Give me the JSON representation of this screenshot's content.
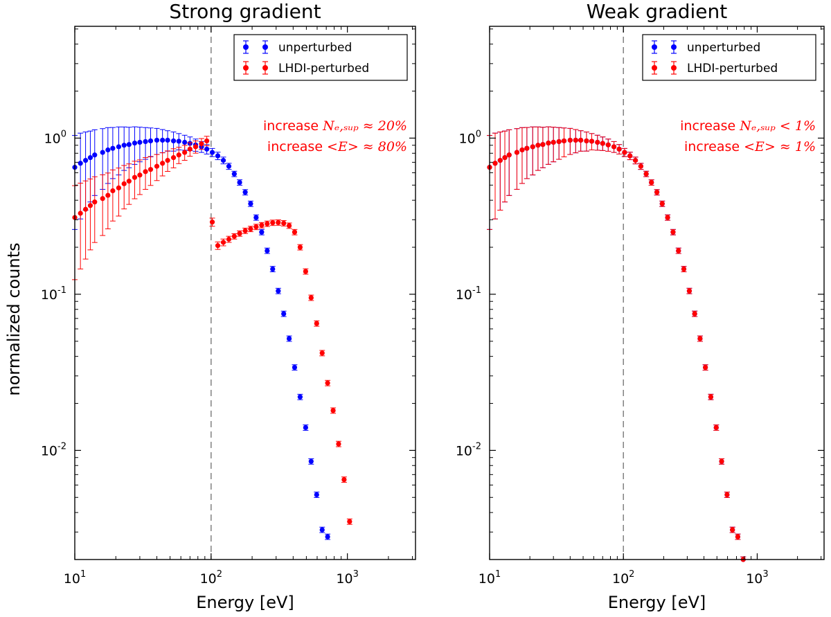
{
  "figure": {
    "ylabel": "normalized counts",
    "xlabel": "Energy [eV]",
    "x_tick_base": "10",
    "x_tick_exponents": [
      "1",
      "2",
      "3"
    ],
    "y_tick_base": "10",
    "y_tick_exponents": [
      "0",
      "-1",
      "-2"
    ]
  },
  "colors": {
    "unperturbed": "#0000ff",
    "perturbed": "#ff0000",
    "threshold_line": "#808080"
  },
  "chart_data": [
    {
      "type": "scatter",
      "title": "Strong gradient",
      "xlabel": "Energy [eV]",
      "ylabel": "normalized counts",
      "xscale": "log",
      "yscale": "log",
      "xlim": [
        10,
        3160
      ],
      "ylim": [
        0.002,
        5.2
      ],
      "grid": false,
      "legend_position": "top-right",
      "reference_line": {
        "x": 100,
        "style": "dashed"
      },
      "annotations": [
        {
          "prefix": "increase ",
          "math": "Nₑ,ₛᵤₚ ≈ 20%"
        },
        {
          "prefix": "increase ",
          "math": "<E> ≈ 80%"
        }
      ],
      "series": [
        {
          "name": "unperturbed",
          "x": [
            10,
            11,
            12,
            13,
            14,
            16,
            17.5,
            19,
            21,
            23,
            25,
            27.5,
            30,
            33,
            36,
            40,
            44,
            48,
            53,
            58,
            64,
            70,
            77,
            85,
            93,
            102,
            112,
            123,
            135,
            148,
            162,
            178,
            195,
            214,
            235,
            258,
            283,
            311,
            341,
            374,
            410,
            450,
            494,
            542,
            595,
            653,
            716
          ],
          "y": [
            0.65,
            0.69,
            0.72,
            0.75,
            0.78,
            0.81,
            0.84,
            0.86,
            0.88,
            0.9,
            0.91,
            0.93,
            0.94,
            0.95,
            0.96,
            0.97,
            0.97,
            0.97,
            0.96,
            0.955,
            0.94,
            0.925,
            0.905,
            0.88,
            0.85,
            0.81,
            0.77,
            0.72,
            0.66,
            0.59,
            0.52,
            0.45,
            0.38,
            0.31,
            0.25,
            0.19,
            0.145,
            0.105,
            0.075,
            0.052,
            0.034,
            0.022,
            0.014,
            0.0085,
            0.0052,
            0.0031,
            0.0028
          ],
          "err_rel": [
            0.6,
            0.56,
            0.52,
            0.48,
            0.45,
            0.42,
            0.39,
            0.36,
            0.34,
            0.31,
            0.29,
            0.27,
            0.25,
            0.23,
            0.21,
            0.19,
            0.17,
            0.15,
            0.14,
            0.12,
            0.11,
            0.1,
            0.09,
            0.08,
            0.07,
            0.06,
            0.055,
            0.05,
            0.045,
            0.04,
            0.04,
            0.04,
            0.04,
            0.04,
            0.04,
            0.04,
            0.04,
            0.04,
            0.04,
            0.04,
            0.04,
            0.04,
            0.04,
            0.04,
            0.04,
            0.04,
            0.04
          ]
        },
        {
          "name": "LHDI-perturbed",
          "x": [
            10,
            11,
            12,
            13,
            14,
            16,
            17.5,
            19,
            21,
            23,
            25,
            27.5,
            30,
            33,
            36,
            40,
            44,
            48,
            53,
            58,
            64,
            70,
            77,
            85,
            93,
            102,
            112,
            123,
            135,
            148,
            162,
            178,
            195,
            214,
            235,
            258,
            283,
            311,
            341,
            374,
            410,
            450,
            494,
            542,
            595,
            653,
            716,
            786,
            862,
            946,
            1038
          ],
          "y": [
            0.31,
            0.33,
            0.35,
            0.37,
            0.39,
            0.41,
            0.43,
            0.46,
            0.48,
            0.51,
            0.53,
            0.56,
            0.58,
            0.61,
            0.63,
            0.66,
            0.69,
            0.72,
            0.75,
            0.78,
            0.81,
            0.85,
            0.88,
            0.92,
            0.96,
            0.29,
            0.205,
            0.215,
            0.225,
            0.235,
            0.245,
            0.255,
            0.262,
            0.27,
            0.277,
            0.283,
            0.287,
            0.288,
            0.285,
            0.275,
            0.25,
            0.2,
            0.14,
            0.095,
            0.065,
            0.042,
            0.027,
            0.018,
            0.011,
            0.0065,
            0.0035
          ],
          "err_rel": [
            0.6,
            0.56,
            0.52,
            0.48,
            0.45,
            0.42,
            0.39,
            0.36,
            0.34,
            0.31,
            0.29,
            0.27,
            0.25,
            0.23,
            0.21,
            0.19,
            0.17,
            0.15,
            0.14,
            0.12,
            0.11,
            0.1,
            0.09,
            0.08,
            0.07,
            0.06,
            0.055,
            0.05,
            0.045,
            0.04,
            0.04,
            0.04,
            0.04,
            0.04,
            0.04,
            0.04,
            0.04,
            0.04,
            0.04,
            0.04,
            0.04,
            0.04,
            0.04,
            0.04,
            0.04,
            0.04,
            0.04,
            0.04,
            0.04,
            0.04,
            0.04
          ]
        }
      ]
    },
    {
      "type": "scatter",
      "title": "Weak gradient",
      "xlabel": "Energy [eV]",
      "ylabel": "",
      "xscale": "log",
      "yscale": "log",
      "xlim": [
        10,
        3160
      ],
      "ylim": [
        0.002,
        5.2
      ],
      "grid": false,
      "legend_position": "top-right",
      "reference_line": {
        "x": 100,
        "style": "dashed"
      },
      "annotations": [
        {
          "prefix": "increase ",
          "math": "Nₑ,ₛᵤₚ < 1%"
        },
        {
          "prefix": "increase ",
          "math": "<E> ≈ 1%"
        }
      ],
      "series": [
        {
          "name": "unperturbed",
          "x": [
            10,
            11,
            12,
            13,
            14,
            16,
            17.5,
            19,
            21,
            23,
            25,
            27.5,
            30,
            33,
            36,
            40,
            44,
            48,
            53,
            58,
            64,
            70,
            77,
            85,
            93,
            102,
            112,
            123,
            135,
            148,
            162,
            178,
            195,
            214,
            235,
            258,
            283,
            311,
            341,
            374,
            410,
            450,
            494,
            542,
            595,
            653,
            716,
            786
          ],
          "y": [
            0.65,
            0.69,
            0.72,
            0.75,
            0.78,
            0.81,
            0.84,
            0.86,
            0.88,
            0.9,
            0.91,
            0.93,
            0.94,
            0.95,
            0.96,
            0.97,
            0.97,
            0.97,
            0.96,
            0.955,
            0.94,
            0.925,
            0.905,
            0.88,
            0.85,
            0.81,
            0.77,
            0.72,
            0.66,
            0.59,
            0.52,
            0.45,
            0.38,
            0.31,
            0.25,
            0.19,
            0.145,
            0.105,
            0.075,
            0.052,
            0.034,
            0.022,
            0.014,
            0.0085,
            0.0052,
            0.0031,
            0.0028,
            0.002
          ],
          "err_rel": [
            0.6,
            0.56,
            0.52,
            0.48,
            0.45,
            0.42,
            0.39,
            0.36,
            0.34,
            0.31,
            0.29,
            0.27,
            0.25,
            0.23,
            0.21,
            0.19,
            0.17,
            0.15,
            0.14,
            0.12,
            0.11,
            0.1,
            0.09,
            0.08,
            0.07,
            0.06,
            0.055,
            0.05,
            0.045,
            0.04,
            0.04,
            0.04,
            0.04,
            0.04,
            0.04,
            0.04,
            0.04,
            0.04,
            0.04,
            0.04,
            0.04,
            0.04,
            0.04,
            0.04,
            0.04,
            0.04,
            0.04,
            0.04
          ]
        },
        {
          "name": "LHDI-perturbed",
          "x": [
            10,
            11,
            12,
            13,
            14,
            16,
            17.5,
            19,
            21,
            23,
            25,
            27.5,
            30,
            33,
            36,
            40,
            44,
            48,
            53,
            58,
            64,
            70,
            77,
            85,
            93,
            102,
            112,
            123,
            135,
            148,
            162,
            178,
            195,
            214,
            235,
            258,
            283,
            311,
            341,
            374,
            410,
            450,
            494,
            542,
            595,
            653,
            716,
            786
          ],
          "y": [
            0.65,
            0.69,
            0.72,
            0.75,
            0.78,
            0.81,
            0.84,
            0.86,
            0.88,
            0.9,
            0.91,
            0.93,
            0.94,
            0.95,
            0.96,
            0.97,
            0.97,
            0.97,
            0.96,
            0.955,
            0.94,
            0.925,
            0.905,
            0.88,
            0.85,
            0.81,
            0.77,
            0.72,
            0.66,
            0.59,
            0.52,
            0.45,
            0.38,
            0.31,
            0.25,
            0.19,
            0.145,
            0.105,
            0.075,
            0.052,
            0.034,
            0.022,
            0.014,
            0.0085,
            0.0052,
            0.0031,
            0.0028,
            0.002
          ],
          "err_rel": [
            0.6,
            0.56,
            0.52,
            0.48,
            0.45,
            0.42,
            0.39,
            0.36,
            0.34,
            0.31,
            0.29,
            0.27,
            0.25,
            0.23,
            0.21,
            0.19,
            0.17,
            0.15,
            0.14,
            0.12,
            0.11,
            0.1,
            0.09,
            0.08,
            0.07,
            0.06,
            0.055,
            0.05,
            0.045,
            0.04,
            0.04,
            0.04,
            0.04,
            0.04,
            0.04,
            0.04,
            0.04,
            0.04,
            0.04,
            0.04,
            0.04,
            0.04,
            0.04,
            0.04,
            0.04,
            0.04,
            0.04,
            0.04
          ]
        }
      ]
    }
  ]
}
